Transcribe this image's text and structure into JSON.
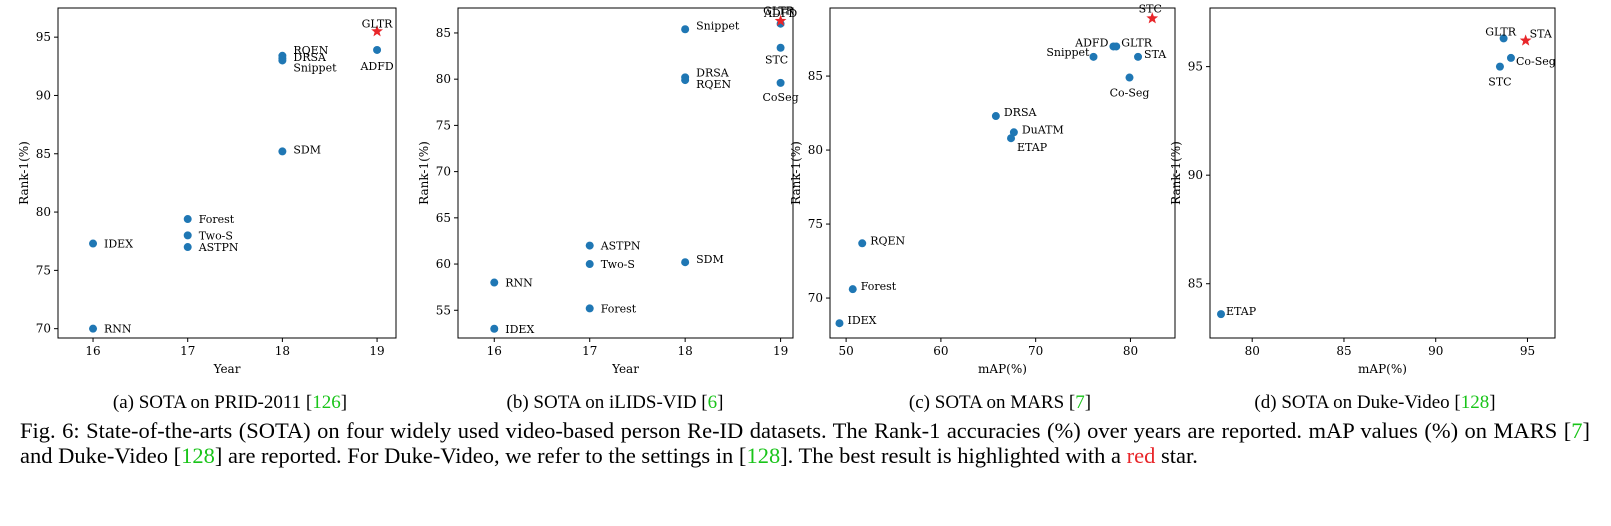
{
  "chart_data": [
    {
      "type": "scatter",
      "xlabel": "Year",
      "ylabel": "Rank-1(%)",
      "xlim": [
        15.63,
        19.2
      ],
      "ylim": [
        69.2,
        97.5
      ],
      "xticks": [
        16,
        17,
        18,
        19
      ],
      "yticks": [
        70,
        75,
        80,
        85,
        90,
        95
      ],
      "points": [
        {
          "label": "RNN",
          "x": 16,
          "y": 70.0
        },
        {
          "label": "IDEX",
          "x": 16,
          "y": 77.3
        },
        {
          "label": "Forest",
          "x": 17,
          "y": 79.4
        },
        {
          "label": "Two-S",
          "x": 17,
          "y": 78.0
        },
        {
          "label": "ASTPN",
          "x": 17,
          "y": 77.0
        },
        {
          "label": "SDM",
          "x": 18,
          "y": 85.2
        },
        {
          "label": "RQEN",
          "x": 18,
          "y": 93.4
        },
        {
          "label": "DRSA",
          "x": 18,
          "y": 93.2
        },
        {
          "label": "Snippet",
          "x": 18,
          "y": 93.0
        },
        {
          "label": "ADFD",
          "x": 19,
          "y": 93.9
        },
        {
          "label": "GLTR",
          "x": 19,
          "y": 95.5,
          "best": true
        }
      ],
      "caption": {
        "prefix": "(a) SOTA on PRID-2011 [",
        "ref": "126",
        "suffix": "]"
      }
    },
    {
      "type": "scatter",
      "xlabel": "Year",
      "ylabel": "Rank-1(%)",
      "xlim": [
        15.62,
        19.13
      ],
      "ylim": [
        52.0,
        87.7
      ],
      "xticks": [
        16,
        17,
        18,
        19
      ],
      "yticks": [
        55,
        60,
        65,
        70,
        75,
        80,
        85
      ],
      "points": [
        {
          "label": "IDEX",
          "x": 16,
          "y": 53.0
        },
        {
          "label": "RNN",
          "x": 16,
          "y": 58.0
        },
        {
          "label": "Forest",
          "x": 17,
          "y": 55.2
        },
        {
          "label": "Two-S",
          "x": 17,
          "y": 60.0
        },
        {
          "label": "ASTPN",
          "x": 17,
          "y": 62.0
        },
        {
          "label": "SDM",
          "x": 18,
          "y": 60.2
        },
        {
          "label": "RQEN",
          "x": 18,
          "y": 79.9
        },
        {
          "label": "DRSA",
          "x": 18,
          "y": 80.2
        },
        {
          "label": "Snippet",
          "x": 18,
          "y": 85.4
        },
        {
          "label": "CoSeg",
          "x": 19,
          "y": 79.6
        },
        {
          "label": "STC",
          "x": 19,
          "y": 83.4
        },
        {
          "label": "GLTR",
          "x": 19,
          "y": 86.0
        },
        {
          "label": "ADFD",
          "x": 19,
          "y": 86.3,
          "best": true
        }
      ],
      "caption": {
        "prefix": "(b) SOTA on iLIDS-VID [",
        "ref": "6",
        "suffix": "]"
      }
    },
    {
      "type": "scatter",
      "xlabel": "mAP(%)",
      "ylabel": "Rank-1(%)",
      "xlim": [
        48.3,
        84.7
      ],
      "ylim": [
        67.3,
        89.6
      ],
      "xticks": [
        50,
        60,
        70,
        80
      ],
      "yticks": [
        70,
        75,
        80,
        85
      ],
      "points": [
        {
          "label": "IDEX",
          "x": 49.3,
          "y": 68.3
        },
        {
          "label": "Forest",
          "x": 50.7,
          "y": 70.6
        },
        {
          "label": "RQEN",
          "x": 51.7,
          "y": 73.7
        },
        {
          "label": "DRSA",
          "x": 65.8,
          "y": 82.3
        },
        {
          "label": "DuATM",
          "x": 67.7,
          "y": 81.2
        },
        {
          "label": "ETAP",
          "x": 67.4,
          "y": 80.8
        },
        {
          "label": "Snippet",
          "x": 76.1,
          "y": 86.3
        },
        {
          "label": "ADFD",
          "x": 78.2,
          "y": 87.0
        },
        {
          "label": "GLTR",
          "x": 78.5,
          "y": 87.0
        },
        {
          "label": "STA",
          "x": 80.8,
          "y": 86.3
        },
        {
          "label": "Co-Seg",
          "x": 79.9,
          "y": 84.9
        },
        {
          "label": "STC",
          "x": 82.3,
          "y": 88.9,
          "best": true
        }
      ],
      "caption": {
        "prefix": "(c) SOTA on MARS [",
        "ref": "7",
        "suffix": "]"
      }
    },
    {
      "type": "scatter",
      "xlabel": "mAP(%)",
      "ylabel": "Rank-1(%)",
      "xlim": [
        77.7,
        96.5
      ],
      "ylim": [
        82.5,
        97.7
      ],
      "xticks": [
        80,
        85,
        90,
        95
      ],
      "yticks": [
        85,
        90,
        95
      ],
      "points": [
        {
          "label": "ETAP",
          "x": 78.3,
          "y": 83.6
        },
        {
          "label": "STC",
          "x": 93.5,
          "y": 95.0
        },
        {
          "label": "Co-Seg",
          "x": 94.1,
          "y": 95.4
        },
        {
          "label": "GLTR",
          "x": 93.7,
          "y": 96.3
        },
        {
          "label": "STA",
          "x": 94.9,
          "y": 96.2,
          "best": true
        }
      ],
      "caption": {
        "prefix": "(d) SOTA on Duke-Video [",
        "ref": "128",
        "suffix": "]"
      }
    }
  ],
  "figure_caption": {
    "s1": "Fig. 6: State-of-the-arts (SOTA) on four widely used video-based person Re-ID datasets. The Rank-1 accuracies (%) over years are reported. mAP values (%) on MARS [",
    "r1": "7",
    "s2": "] and Duke-Video [",
    "r2": "128",
    "s3": "] are reported. For Duke-Video, we refer to the settings in [",
    "r3": "128",
    "s4": "]. The best result is highlighted with a ",
    "red_word": "red",
    "s5": " star."
  },
  "colors": {
    "point": "#1f77b4",
    "best_star": "#e8262a",
    "reference": "#19c419"
  }
}
